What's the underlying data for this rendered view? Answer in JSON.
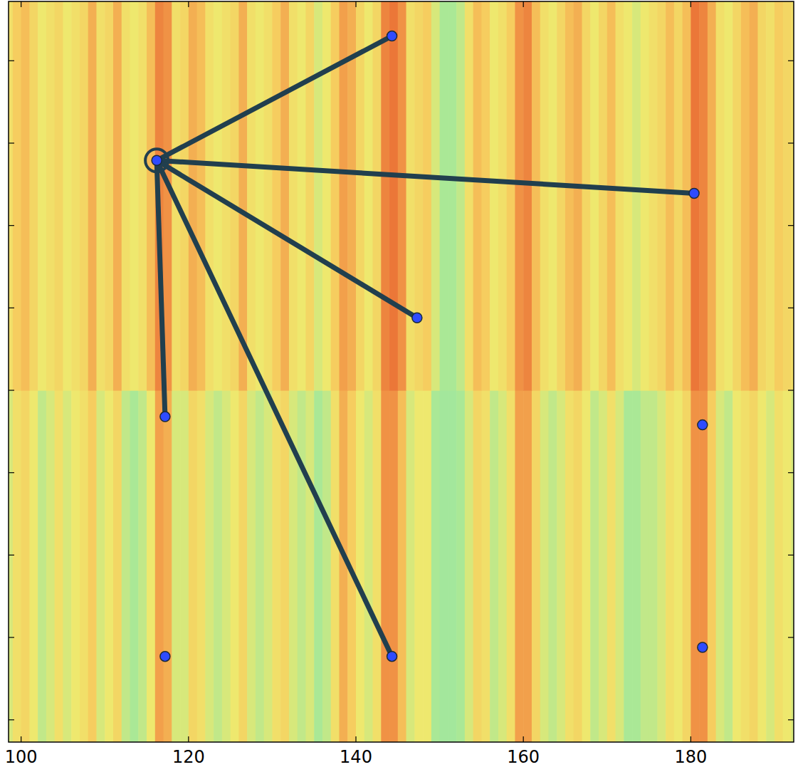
{
  "chart_data": {
    "type": "scatter",
    "xlim": [
      98.5,
      192.3
    ],
    "ylim": [
      -2.7,
      87.2
    ],
    "xticks": [
      100,
      120,
      140,
      160,
      180
    ],
    "yticks": [
      0,
      10,
      20,
      30,
      40,
      50,
      60,
      70,
      80
    ],
    "tick_labels": "x",
    "grid": false,
    "color": "#2f4bff",
    "marker": "circle",
    "points": {
      "x": [
        116.2,
        144.3,
        180.4,
        147.3,
        117.2,
        144.3,
        117.2,
        181.4,
        181.4
      ],
      "y": [
        67.9,
        83.0,
        63.9,
        48.8,
        36.8,
        7.7,
        7.7,
        35.8,
        8.8
      ]
    },
    "highlight": 0,
    "edges": [
      [
        0,
        1
      ],
      [
        0,
        2
      ],
      [
        0,
        3
      ],
      [
        0,
        4
      ],
      [
        0,
        5
      ]
    ],
    "heatmap": {
      "x_edges": [
        98,
        99,
        100,
        101,
        102,
        103,
        104,
        105,
        106,
        107,
        108,
        109,
        110,
        111,
        112,
        113,
        114,
        115,
        116,
        117,
        118,
        119,
        120,
        121,
        122,
        123,
        124,
        125,
        126,
        127,
        128,
        129,
        130,
        131,
        132,
        133,
        134,
        135,
        136,
        137,
        138,
        139,
        140,
        141,
        142,
        143,
        144,
        145,
        146,
        147,
        148,
        149,
        150,
        151,
        152,
        153,
        154,
        155,
        156,
        157,
        158,
        159,
        160,
        161,
        162,
        163,
        164,
        165,
        166,
        167,
        168,
        169,
        170,
        171,
        172,
        173,
        174,
        175,
        176,
        177,
        178,
        179,
        180,
        181,
        182,
        183,
        184,
        185,
        186,
        187,
        188,
        189,
        190,
        191,
        192,
        193
      ],
      "y_edges": [
        -2.7,
        40,
        87.2
      ],
      "zlim": [
        0,
        1
      ],
      "z": [
        [
          0.45,
          0.55,
          0.6,
          0.5,
          0.4,
          0.45,
          0.55,
          0.45,
          0.5,
          0.55,
          0.65,
          0.45,
          0.5,
          0.6,
          0.4,
          0.35,
          0.4,
          0.5,
          0.8,
          0.75,
          0.45,
          0.45,
          0.6,
          0.55,
          0.45,
          0.4,
          0.45,
          0.5,
          0.6,
          0.45,
          0.4,
          0.45,
          0.55,
          0.6,
          0.45,
          0.4,
          0.45,
          0.35,
          0.4,
          0.55,
          0.75,
          0.65,
          0.5,
          0.45,
          0.55,
          0.85,
          0.85,
          0.7,
          0.45,
          0.5,
          0.5,
          0.35,
          0.3,
          0.3,
          0.35,
          0.45,
          0.6,
          0.55,
          0.4,
          0.45,
          0.55,
          0.8,
          0.8,
          0.6,
          0.45,
          0.4,
          0.45,
          0.55,
          0.6,
          0.5,
          0.4,
          0.45,
          0.55,
          0.45,
          0.35,
          0.35,
          0.4,
          0.4,
          0.45,
          0.55,
          0.5,
          0.6,
          0.85,
          0.85,
          0.65,
          0.45,
          0.4,
          0.5,
          0.55,
          0.6,
          0.5,
          0.45,
          0.55,
          0.5,
          0.45
        ],
        [
          0.55,
          0.65,
          0.7,
          0.6,
          0.5,
          0.55,
          0.6,
          0.5,
          0.55,
          0.6,
          0.75,
          0.55,
          0.6,
          0.75,
          0.55,
          0.5,
          0.55,
          0.7,
          0.9,
          0.85,
          0.55,
          0.6,
          0.75,
          0.7,
          0.55,
          0.5,
          0.55,
          0.6,
          0.75,
          0.55,
          0.5,
          0.55,
          0.65,
          0.75,
          0.55,
          0.5,
          0.6,
          0.45,
          0.5,
          0.65,
          0.8,
          0.75,
          0.6,
          0.5,
          0.6,
          0.9,
          0.95,
          0.85,
          0.55,
          0.6,
          0.65,
          0.45,
          0.35,
          0.35,
          0.4,
          0.55,
          0.7,
          0.65,
          0.5,
          0.55,
          0.65,
          0.85,
          0.9,
          0.7,
          0.55,
          0.5,
          0.6,
          0.7,
          0.75,
          0.6,
          0.5,
          0.6,
          0.7,
          0.55,
          0.5,
          0.45,
          0.5,
          0.55,
          0.6,
          0.7,
          0.6,
          0.7,
          0.95,
          0.9,
          0.75,
          0.55,
          0.5,
          0.6,
          0.7,
          0.75,
          0.6,
          0.55,
          0.65,
          0.6,
          0.55
        ]
      ]
    }
  }
}
